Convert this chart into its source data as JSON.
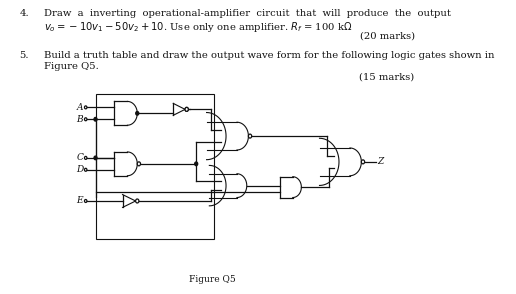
{
  "bg_color": "#ffffff",
  "text_color": "#1a1a1a",
  "fig_width": 5.16,
  "fig_height": 2.94,
  "dpi": 100,
  "q4_marks": "(20 marks)",
  "q5_marks": "(15 marks)",
  "fig_label": "Figure Q5"
}
